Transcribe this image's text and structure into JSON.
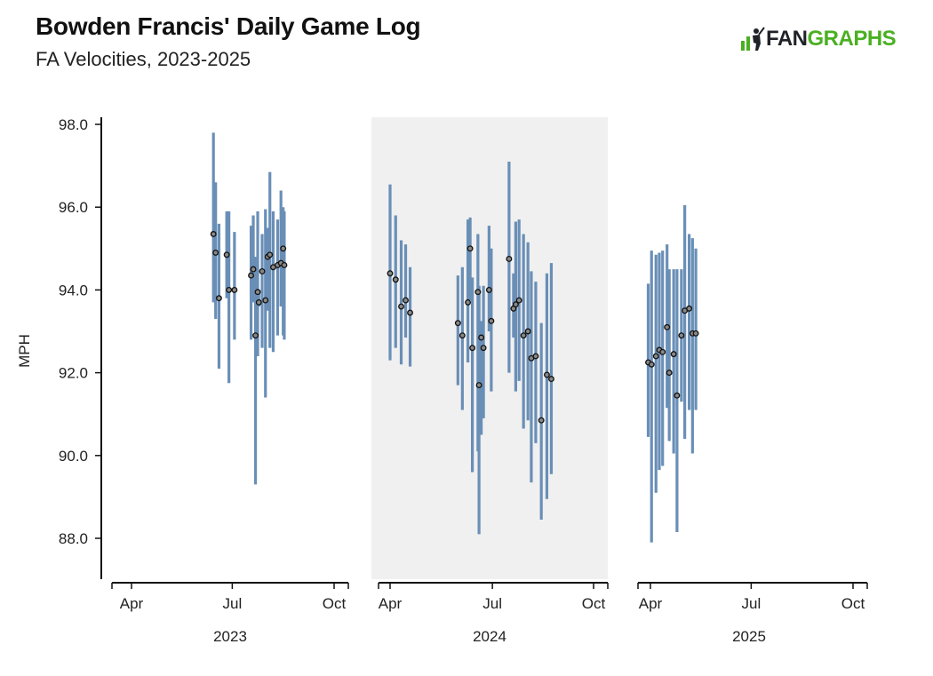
{
  "header": {
    "title": "Bowden Francis' Daily Game Log",
    "subtitle": "FA Velocities, 2023-2025"
  },
  "logo": {
    "part1": "FAN",
    "part2": "GRAPHS",
    "brand_color": "#4ab022",
    "dark_color": "#1f2328"
  },
  "colors": {
    "bar": "#6a8fb7",
    "dot_fill": "#888888",
    "dot_stroke": "#111111",
    "shaded_panel": "#f0f0f0"
  },
  "chart_data": {
    "type": "errorbar",
    "ylabel": "MPH",
    "ylim": [
      87.0,
      98.2
    ],
    "yticks": [
      "98.0",
      "96.0",
      "94.0",
      "92.0",
      "90.0",
      "88.0"
    ],
    "shaded_panel": "2024",
    "panels": [
      {
        "year": "2023",
        "xticks": [
          "Apr",
          "Jul",
          "Oct"
        ],
        "games": [
          {
            "date": "2023-06-14",
            "avg": 95.35,
            "low": 93.7,
            "high": 97.8
          },
          {
            "date": "2023-06-16",
            "avg": 94.9,
            "low": 93.3,
            "high": 96.6
          },
          {
            "date": "2023-06-19",
            "avg": 93.8,
            "low": 92.1,
            "high": 95.6
          },
          {
            "date": "2023-06-26",
            "avg": 94.85,
            "low": 93.8,
            "high": 95.9
          },
          {
            "date": "2023-06-28",
            "avg": 94.0,
            "low": 91.75,
            "high": 95.9
          },
          {
            "date": "2023-07-03",
            "avg": 94.0,
            "low": 92.8,
            "high": 95.4
          },
          {
            "date": "2023-07-18",
            "avg": 94.35,
            "low": 92.8,
            "high": 95.55
          },
          {
            "date": "2023-07-20",
            "avg": 94.5,
            "low": 93.7,
            "high": 95.8
          },
          {
            "date": "2023-07-22",
            "avg": 92.9,
            "low": 89.3,
            "high": 94.8
          },
          {
            "date": "2023-07-24",
            "avg": 93.95,
            "low": 92.4,
            "high": 95.9
          },
          {
            "date": "2023-07-25",
            "avg": 93.7,
            "low": 93.6,
            "high": 94.0
          },
          {
            "date": "2023-07-28",
            "avg": 94.45,
            "low": 92.6,
            "high": 95.35
          },
          {
            "date": "2023-07-31",
            "avg": 93.75,
            "low": 91.4,
            "high": 95.95
          },
          {
            "date": "2023-08-02",
            "avg": 94.8,
            "low": 93.5,
            "high": 95.5
          },
          {
            "date": "2023-08-04",
            "avg": 94.85,
            "low": 92.6,
            "high": 96.85
          },
          {
            "date": "2023-08-07",
            "avg": 94.55,
            "low": 92.5,
            "high": 95.9
          },
          {
            "date": "2023-08-11",
            "avg": 94.6,
            "low": 92.9,
            "high": 95.7
          },
          {
            "date": "2023-08-14",
            "avg": 94.65,
            "low": 93.6,
            "high": 96.4
          },
          {
            "date": "2023-08-16",
            "avg": 95.0,
            "low": 92.9,
            "high": 96.0
          },
          {
            "date": "2023-08-17",
            "avg": 94.6,
            "low": 92.8,
            "high": 95.9
          }
        ]
      },
      {
        "year": "2024",
        "xticks": [
          "Apr",
          "Jul",
          "Oct"
        ],
        "games": [
          {
            "date": "2024-03-31",
            "avg": 94.4,
            "low": 92.3,
            "high": 96.55
          },
          {
            "date": "2024-04-05",
            "avg": 94.25,
            "low": 92.6,
            "high": 95.8
          },
          {
            "date": "2024-04-10",
            "avg": 93.6,
            "low": 92.2,
            "high": 95.2
          },
          {
            "date": "2024-04-14",
            "avg": 93.75,
            "low": 92.85,
            "high": 95.1
          },
          {
            "date": "2024-04-18",
            "avg": 93.45,
            "low": 92.15,
            "high": 94.55
          },
          {
            "date": "2024-05-31",
            "avg": 93.2,
            "low": 91.7,
            "high": 94.35
          },
          {
            "date": "2024-06-04",
            "avg": 92.9,
            "low": 91.1,
            "high": 94.55
          },
          {
            "date": "2024-06-09",
            "avg": 93.7,
            "low": 92.25,
            "high": 95.7
          },
          {
            "date": "2024-06-11",
            "avg": 95.0,
            "low": 93.75,
            "high": 95.75
          },
          {
            "date": "2024-06-13",
            "avg": 92.6,
            "low": 89.6,
            "high": 94.3
          },
          {
            "date": "2024-06-18",
            "avg": 93.95,
            "low": 90.1,
            "high": 95.35
          },
          {
            "date": "2024-06-19",
            "avg": 91.7,
            "low": 88.1,
            "high": 94.1
          },
          {
            "date": "2024-06-21",
            "avg": 92.85,
            "low": 90.5,
            "high": 93.25
          },
          {
            "date": "2024-06-23",
            "avg": 92.6,
            "low": 90.9,
            "high": 94.1
          },
          {
            "date": "2024-06-28",
            "avg": 94.0,
            "low": 93.0,
            "high": 95.55
          },
          {
            "date": "2024-06-30",
            "avg": 93.25,
            "low": 91.55,
            "high": 95.0
          },
          {
            "date": "2024-07-16",
            "avg": 94.75,
            "low": 92.0,
            "high": 97.1
          },
          {
            "date": "2024-07-20",
            "avg": 93.55,
            "low": 92.85,
            "high": 94.4
          },
          {
            "date": "2024-07-22",
            "avg": 93.65,
            "low": 91.55,
            "high": 95.65
          },
          {
            "date": "2024-07-25",
            "avg": 93.75,
            "low": 91.8,
            "high": 95.7
          },
          {
            "date": "2024-07-29",
            "avg": 92.9,
            "low": 90.65,
            "high": 95.35
          },
          {
            "date": "2024-08-02",
            "avg": 93.0,
            "low": 90.85,
            "high": 95.15
          },
          {
            "date": "2024-08-05",
            "avg": 92.35,
            "low": 89.35,
            "high": 94.45
          },
          {
            "date": "2024-08-09",
            "avg": 92.4,
            "low": 90.3,
            "high": 94.2
          },
          {
            "date": "2024-08-14",
            "avg": 90.85,
            "low": 88.45,
            "high": 93.2
          },
          {
            "date": "2024-08-19",
            "avg": 91.95,
            "low": 88.95,
            "high": 94.4
          },
          {
            "date": "2024-08-23",
            "avg": 91.85,
            "low": 89.55,
            "high": 94.65
          }
        ]
      },
      {
        "year": "2025",
        "xticks": [
          "Apr",
          "Jul",
          "Oct"
        ],
        "games": [
          {
            "date": "2025-03-30",
            "avg": 92.25,
            "low": 90.45,
            "high": 94.15
          },
          {
            "date": "2025-04-02",
            "avg": 92.2,
            "low": 87.9,
            "high": 94.95
          },
          {
            "date": "2025-04-06",
            "avg": 92.4,
            "low": 89.1,
            "high": 94.85
          },
          {
            "date": "2025-04-09",
            "avg": 92.55,
            "low": 89.65,
            "high": 94.9
          },
          {
            "date": "2025-04-12",
            "avg": 92.5,
            "low": 89.75,
            "high": 94.95
          },
          {
            "date": "2025-04-16",
            "avg": 93.1,
            "low": 91.15,
            "high": 95.1
          },
          {
            "date": "2025-04-18",
            "avg": 92.0,
            "low": 90.35,
            "high": 94.5
          },
          {
            "date": "2025-04-22",
            "avg": 92.45,
            "low": 90.05,
            "high": 94.5
          },
          {
            "date": "2025-04-25",
            "avg": 91.45,
            "low": 88.15,
            "high": 94.5
          },
          {
            "date": "2025-04-29",
            "avg": 92.9,
            "low": 91.3,
            "high": 94.5
          },
          {
            "date": "2025-05-02",
            "avg": 93.5,
            "low": 90.4,
            "high": 96.05
          },
          {
            "date": "2025-05-06",
            "avg": 93.55,
            "low": 91.1,
            "high": 95.35
          },
          {
            "date": "2025-05-09",
            "avg": 92.95,
            "low": 90.05,
            "high": 95.25
          },
          {
            "date": "2025-05-12",
            "avg": 92.95,
            "low": 91.1,
            "high": 95.0
          }
        ]
      }
    ]
  }
}
